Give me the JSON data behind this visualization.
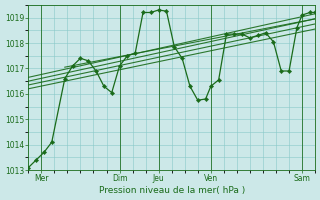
{
  "bg_color": "#cce8e8",
  "grid_color": "#88c8c8",
  "line_color": "#1a6b1a",
  "marker_color": "#1a6b1a",
  "tick_color": "#1a6b1a",
  "xlabel_text": "Pression niveau de la mer( hPa )",
  "ylim": [
    1013.0,
    1019.5
  ],
  "yticks": [
    1013,
    1014,
    1015,
    1016,
    1017,
    1018,
    1019
  ],
  "xlim": [
    0,
    11.0
  ],
  "xtick_labels": [
    "Mer",
    "Dim",
    "Jeu",
    "Ven",
    "Sam"
  ],
  "xtick_positions": [
    0.5,
    3.5,
    5.0,
    7.0,
    10.5
  ],
  "vlines": [
    0.5,
    3.5,
    5.0,
    7.0,
    10.5
  ],
  "main_x": [
    0.0,
    0.3,
    0.6,
    0.9,
    1.4,
    1.7,
    2.0,
    2.3,
    2.6,
    2.9,
    3.2,
    3.5,
    3.8,
    4.1,
    4.4,
    4.7,
    5.0,
    5.3,
    5.6,
    5.9,
    6.2,
    6.5,
    6.8,
    7.0,
    7.3,
    7.6,
    7.9,
    8.2,
    8.5,
    8.8,
    9.1,
    9.4,
    9.7,
    10.0,
    10.3,
    10.5,
    10.8,
    11.0
  ],
  "main_y": [
    1013.1,
    1013.4,
    1013.7,
    1014.1,
    1016.6,
    1017.1,
    1017.4,
    1017.3,
    1016.9,
    1016.3,
    1016.05,
    1017.1,
    1017.5,
    1017.6,
    1019.2,
    1019.2,
    1019.3,
    1019.25,
    1017.85,
    1017.4,
    1016.3,
    1015.75,
    1015.8,
    1016.3,
    1016.55,
    1018.35,
    1018.35,
    1018.35,
    1018.2,
    1018.3,
    1018.4,
    1018.05,
    1016.9,
    1016.9,
    1018.6,
    1019.1,
    1019.2,
    1019.2
  ],
  "ensemble_lines": [
    {
      "x": [
        0.0,
        11.0
      ],
      "y": [
        1016.65,
        1019.15
      ]
    },
    {
      "x": [
        0.0,
        11.0
      ],
      "y": [
        1016.5,
        1018.95
      ]
    },
    {
      "x": [
        0.0,
        11.0
      ],
      "y": [
        1016.35,
        1018.75
      ]
    },
    {
      "x": [
        0.0,
        11.0
      ],
      "y": [
        1016.2,
        1018.55
      ]
    },
    {
      "x": [
        1.4,
        11.0
      ],
      "y": [
        1017.05,
        1018.95
      ]
    }
  ]
}
